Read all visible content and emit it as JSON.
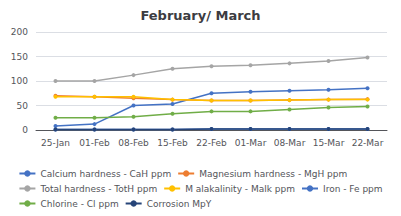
{
  "chart_data": {
    "type": "line",
    "title": "February/ March",
    "categories": [
      "25-Jan",
      "01-Feb",
      "08-Feb",
      "15-Feb",
      "22-Feb",
      "01-Mar",
      "08-Mar",
      "15-Mar",
      "22-Mar"
    ],
    "series": [
      {
        "name": "Calcium hardness - CaH ppm",
        "color": "#4472C4",
        "values": [
          8,
          12,
          50,
          53,
          75,
          78,
          80,
          82,
          85
        ]
      },
      {
        "name": "Magnesium hardness - MgH ppm",
        "color": "#ED7D31",
        "values": [
          70,
          68,
          65,
          62,
          60,
          60,
          61,
          62,
          63
        ]
      },
      {
        "name": "Total hardness - TotH ppm",
        "color": "#A5A5A5",
        "values": [
          100,
          100,
          112,
          125,
          130,
          132,
          136,
          141,
          148
        ]
      },
      {
        "name": "M alakalinity - Malk ppm",
        "color": "#FFC000",
        "values": [
          68,
          68,
          68,
          62,
          60,
          60,
          61,
          62,
          62
        ]
      },
      {
        "name": "Iron - Fe ppm",
        "color": "#4472C4",
        "values": [
          1,
          1,
          1,
          1,
          2,
          2,
          2,
          2,
          2
        ]
      },
      {
        "name": "Chlorine - Cl ppm",
        "color": "#70AD47",
        "values": [
          25,
          25,
          27,
          33,
          38,
          38,
          42,
          46,
          48
        ]
      },
      {
        "name": "Corrosion MpY",
        "color": "#264478",
        "values": [
          1,
          1,
          1,
          1,
          2,
          2,
          2,
          2,
          2
        ]
      }
    ],
    "ylim": [
      0,
      200
    ],
    "yticks": [
      0,
      50,
      100,
      150,
      200
    ],
    "grid": true,
    "legend": "bottom",
    "marker": "circle"
  }
}
